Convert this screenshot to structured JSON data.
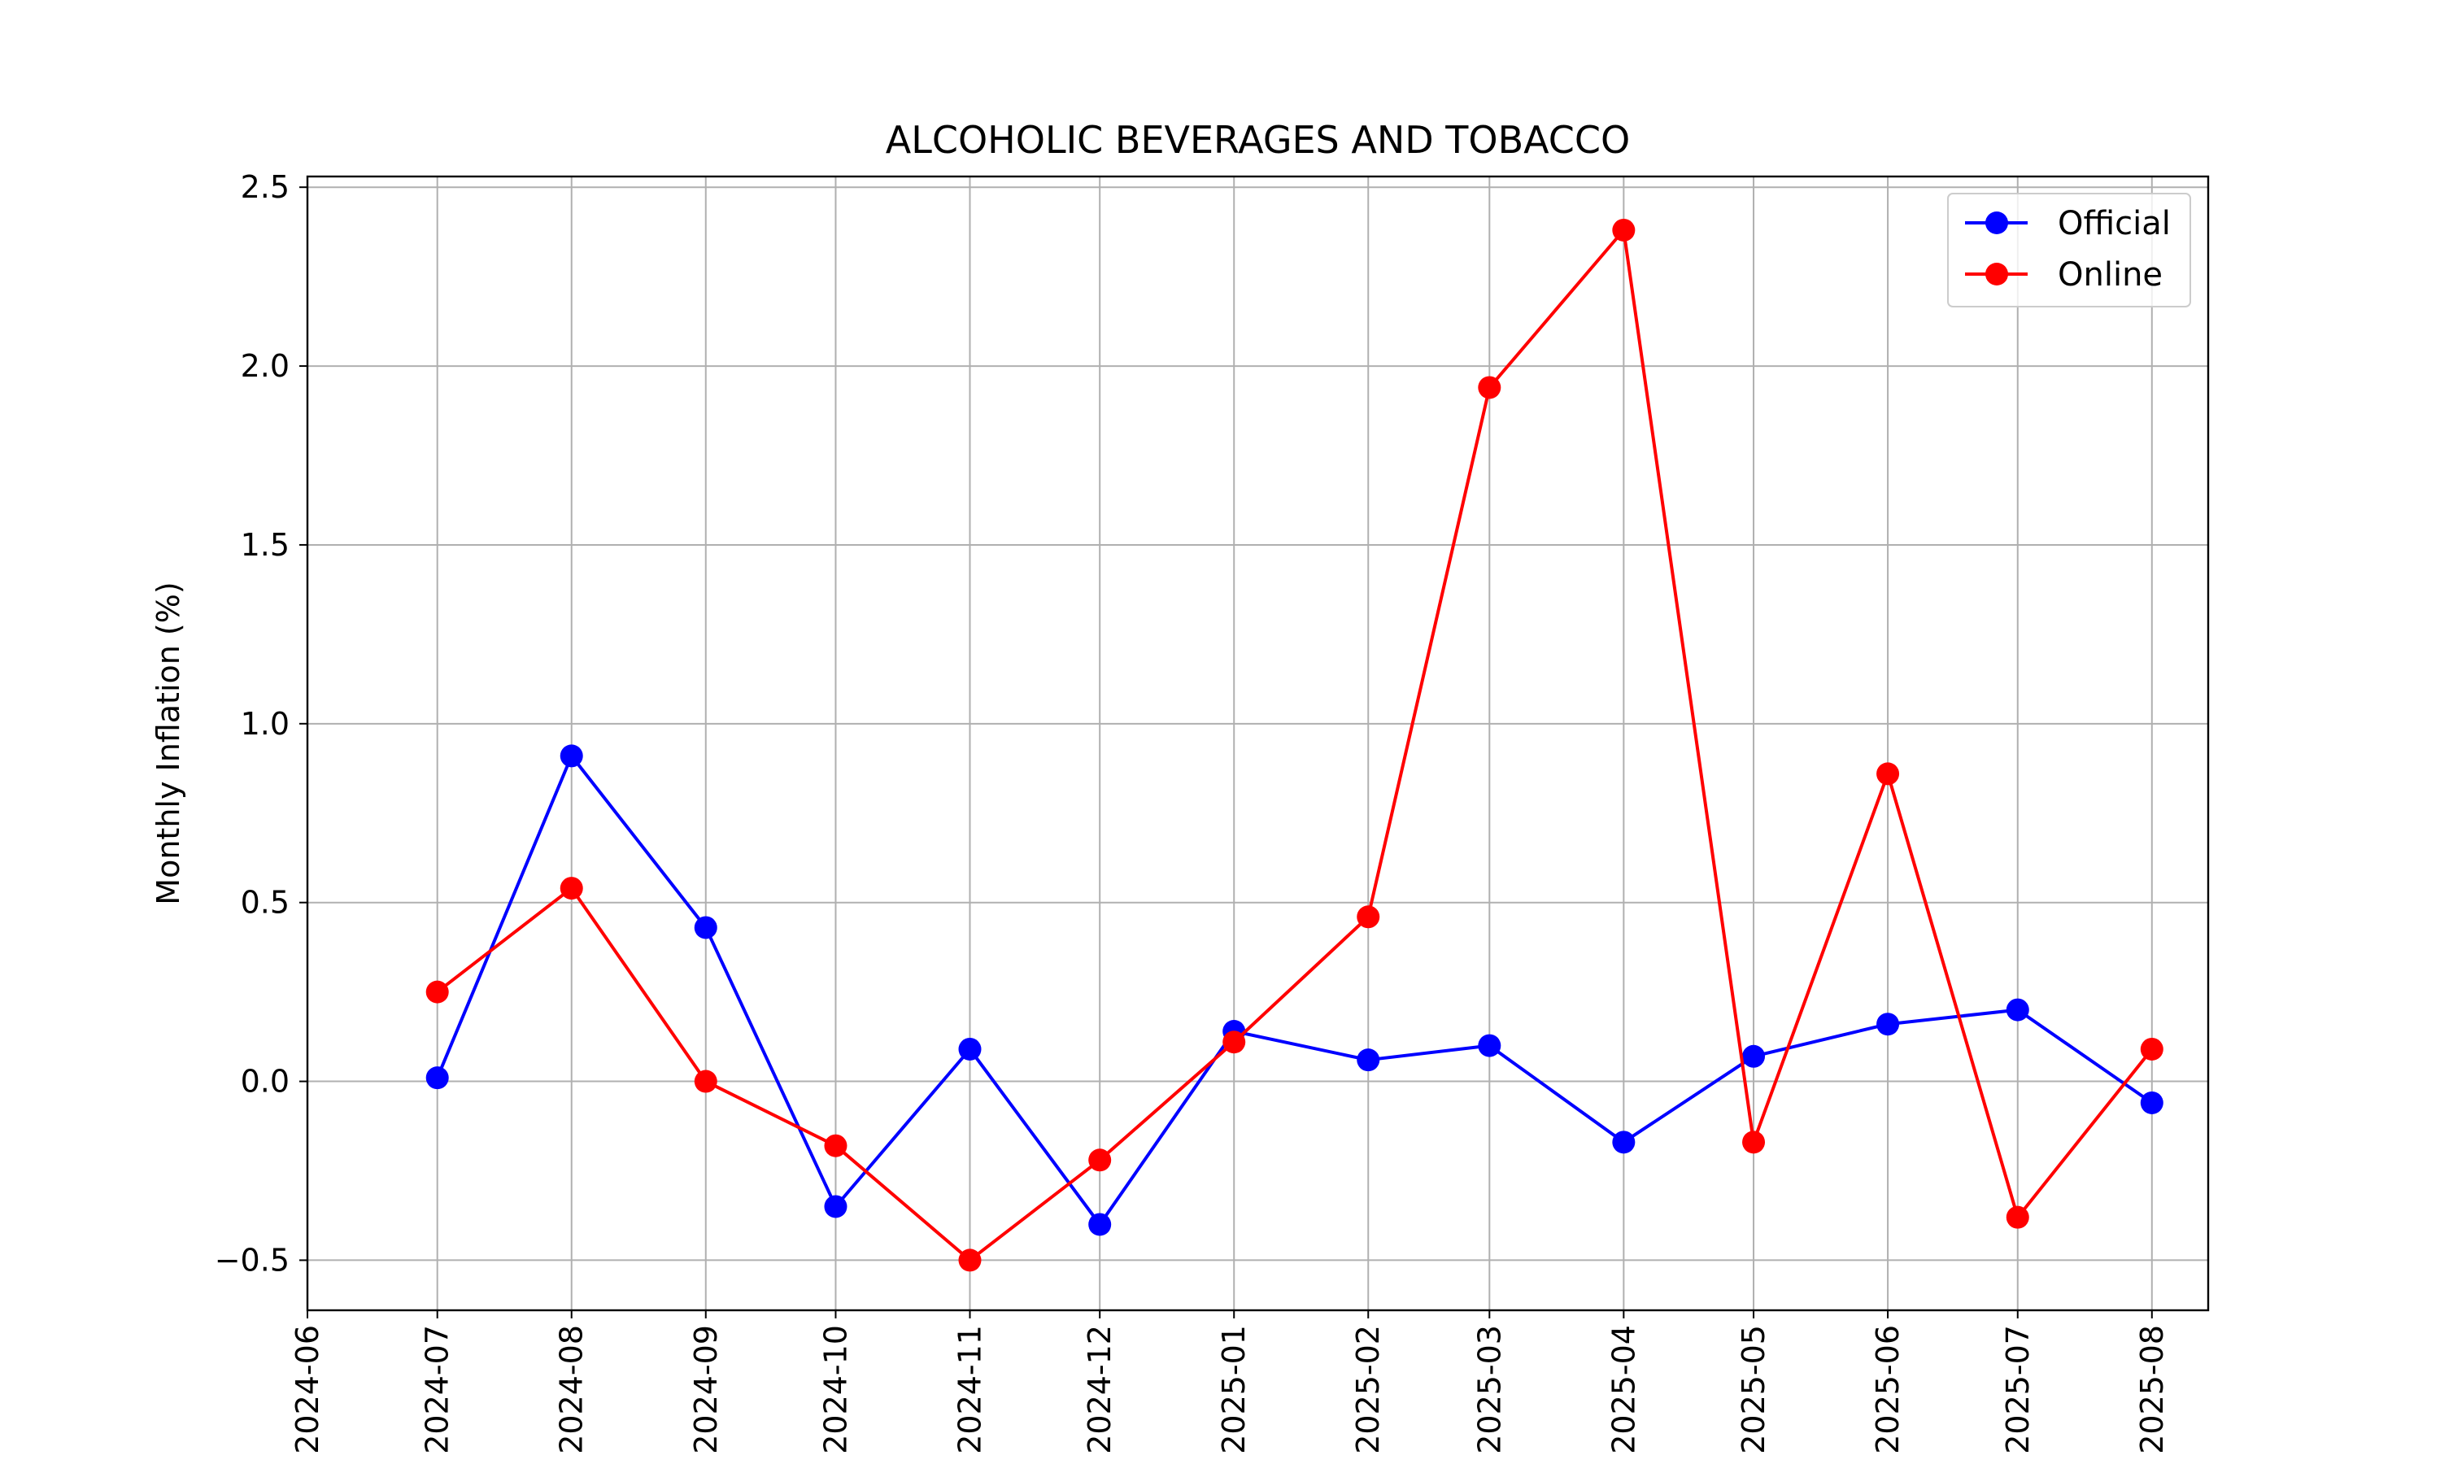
{
  "chart_data": {
    "type": "line",
    "title": "ALCOHOLIC BEVERAGES AND TOBACCO",
    "xlabel": "",
    "ylabel": "Monthly Inflation (%)",
    "x_ticks": [
      "2024-06",
      "2024-07",
      "2024-08",
      "2024-09",
      "2024-10",
      "2024-11",
      "2024-12",
      "2025-01",
      "2025-02",
      "2025-03",
      "2025-04",
      "2025-05",
      "2025-06",
      "2025-07",
      "2025-08"
    ],
    "y_ticks": [
      -0.5,
      0.0,
      0.5,
      1.0,
      1.5,
      2.0,
      2.5
    ],
    "ylim": [
      -0.64,
      2.53
    ],
    "xlim": [
      "2024-06-01",
      "2025-08-14"
    ],
    "grid": true,
    "legend_position": "upper right",
    "series": [
      {
        "name": "Official",
        "color": "#0000ff",
        "x": [
          "2024-07-01",
          "2024-08-01",
          "2024-09-01",
          "2024-10-01",
          "2024-11-01",
          "2024-12-01",
          "2025-01-01",
          "2025-02-01",
          "2025-03-01",
          "2025-04-01",
          "2025-05-01",
          "2025-06-01",
          "2025-07-01",
          "2025-08-01"
        ],
        "values": [
          0.01,
          0.91,
          0.43,
          -0.35,
          0.09,
          -0.4,
          0.14,
          0.06,
          0.1,
          -0.17,
          0.07,
          0.16,
          0.2,
          -0.06
        ]
      },
      {
        "name": "Online",
        "color": "#ff0000",
        "x": [
          "2024-07-01",
          "2024-08-01",
          "2024-09-01",
          "2024-10-01",
          "2024-11-01",
          "2024-12-01",
          "2025-01-01",
          "2025-02-01",
          "2025-03-01",
          "2025-04-01",
          "2025-05-01",
          "2025-06-01",
          "2025-07-01",
          "2025-08-01"
        ],
        "values": [
          0.25,
          0.54,
          0.0,
          -0.18,
          -0.5,
          -0.22,
          0.11,
          0.46,
          1.94,
          2.38,
          -0.17,
          0.86,
          -0.38,
          0.09
        ]
      }
    ]
  }
}
